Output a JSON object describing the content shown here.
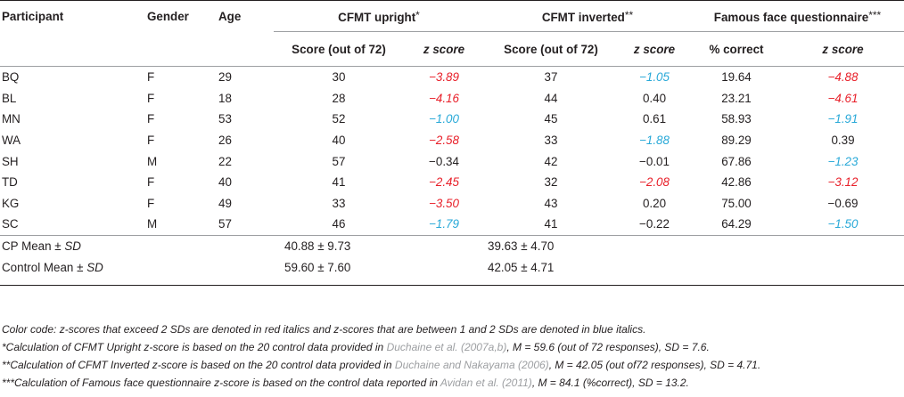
{
  "headers": {
    "participant": "Participant",
    "gender": "Gender",
    "age": "Age",
    "cfmt_upright": "CFMT upright",
    "cfmt_upright_mark": "*",
    "cfmt_inverted": "CFMT inverted",
    "cfmt_inverted_mark": "**",
    "famous": "Famous face questionnaire",
    "famous_mark": "***",
    "score72": "Score (out of 72)",
    "zscore": "z score",
    "pct_correct": "% correct"
  },
  "rows": [
    {
      "participant": "BQ",
      "gender": "F",
      "age": "29",
      "up_score": "30",
      "up_z": "−3.89",
      "up_z_style": "red",
      "inv_score": "37",
      "inv_z": "−1.05",
      "inv_z_style": "blue",
      "ff_pct": "19.64",
      "ff_z": "−4.88",
      "ff_z_style": "red"
    },
    {
      "participant": "BL",
      "gender": "F",
      "age": "18",
      "up_score": "28",
      "up_z": "−4.16",
      "up_z_style": "red",
      "inv_score": "44",
      "inv_z": "0.40",
      "inv_z_style": "plain",
      "ff_pct": "23.21",
      "ff_z": "−4.61",
      "ff_z_style": "red"
    },
    {
      "participant": "MN",
      "gender": "F",
      "age": "53",
      "up_score": "52",
      "up_z": "−1.00",
      "up_z_style": "blue",
      "inv_score": "45",
      "inv_z": "0.61",
      "inv_z_style": "plain",
      "ff_pct": "58.93",
      "ff_z": "−1.91",
      "ff_z_style": "blue"
    },
    {
      "participant": "WA",
      "gender": "F",
      "age": "26",
      "up_score": "40",
      "up_z": "−2.58",
      "up_z_style": "red",
      "inv_score": "33",
      "inv_z": "−1.88",
      "inv_z_style": "blue",
      "ff_pct": "89.29",
      "ff_z": "0.39",
      "ff_z_style": "plain"
    },
    {
      "participant": "SH",
      "gender": "M",
      "age": "22",
      "up_score": "57",
      "up_z": "−0.34",
      "up_z_style": "plain",
      "inv_score": "42",
      "inv_z": "−0.01",
      "inv_z_style": "plain",
      "ff_pct": "67.86",
      "ff_z": "−1.23",
      "ff_z_style": "blue"
    },
    {
      "participant": "TD",
      "gender": "F",
      "age": "40",
      "up_score": "41",
      "up_z": "−2.45",
      "up_z_style": "red",
      "inv_score": "32",
      "inv_z": "−2.08",
      "inv_z_style": "red",
      "ff_pct": "42.86",
      "ff_z": "−3.12",
      "ff_z_style": "red"
    },
    {
      "participant": "KG",
      "gender": "F",
      "age": "49",
      "up_score": "33",
      "up_z": "−3.50",
      "up_z_style": "red",
      "inv_score": "43",
      "inv_z": "0.20",
      "inv_z_style": "plain",
      "ff_pct": "75.00",
      "ff_z": "−0.69",
      "ff_z_style": "plain"
    },
    {
      "participant": "SC",
      "gender": "M",
      "age": "57",
      "up_score": "46",
      "up_z": "−1.79",
      "up_z_style": "blue",
      "inv_score": "41",
      "inv_z": "−0.22",
      "inv_z_style": "plain",
      "ff_pct": "64.29",
      "ff_z": "−1.50",
      "ff_z_style": "blue"
    }
  ],
  "summary": {
    "cp_label": "CP Mean ± ",
    "control_label": "Control Mean ± ",
    "sd_label": "SD",
    "cp_upright": "40.88 ± 9.73",
    "cp_inverted": "39.63 ± 4.70",
    "control_upright": "59.60 ± 7.60",
    "control_inverted": "42.05 ± 4.71"
  },
  "notes": {
    "color_code": "Color code: z-scores that exceed 2 SDs are denoted in red italics and z-scores that are between 1 and 2 SDs are denoted in blue italics.",
    "n1_mark": "*",
    "n1_a": "Calculation of CFMT Upright z-score is based on the 20 control data provided in ",
    "n1_link": "Duchaine et al. (2007a,b)",
    "n1_b": ", M = 59.6 (out of 72 responses), SD = 7.6.",
    "n2_mark": "**",
    "n2_a": "Calculation of CFMT Inverted z-score is based on the 20 control data provided in ",
    "n2_link": "Duchaine and Nakayama (2006)",
    "n2_b": ", M = 42.05 (out of72 responses), SD = 4.71.",
    "n3_mark": "***",
    "n3_a": "Calculation of Famous face questionnaire z-score is based on the control data reported in ",
    "n3_link": "Avidan et al. (2011)",
    "n3_b": ", M = 84.1 (%correct), SD = 13.2."
  },
  "colors": {
    "red": "#e8202a",
    "blue": "#29a9d8",
    "link": "#9d9fa2"
  }
}
